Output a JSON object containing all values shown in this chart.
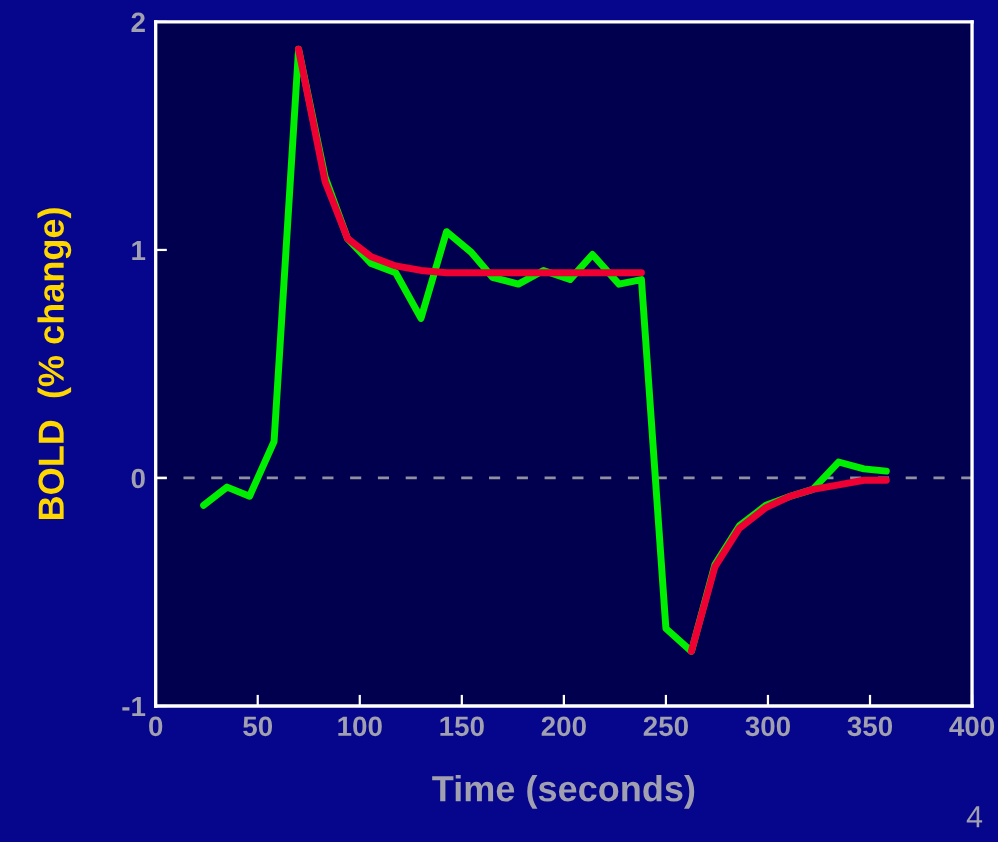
{
  "chart_data": {
    "type": "line",
    "xlabel": "Time (seconds)",
    "ylabel": "BOLD  (% change)",
    "x": [
      23.5,
      35,
      46,
      58,
      70,
      83,
      94,
      105.6,
      117.6,
      130,
      142.5,
      154.6,
      165,
      177.7,
      190,
      203,
      214,
      227,
      238,
      250,
      262.5,
      274,
      286,
      299,
      311,
      322,
      334.6,
      347,
      358
    ],
    "series": [
      {
        "color": "#00ee00",
        "values": [
          -0.12,
          -0.04,
          -0.08,
          0.16,
          1.88,
          1.32,
          1.05,
          0.94,
          0.9,
          0.7,
          1.08,
          0.99,
          0.88,
          0.85,
          0.91,
          0.87,
          0.98,
          0.85,
          0.87,
          -0.66,
          -0.76,
          -0.38,
          -0.21,
          -0.12,
          -0.08,
          -0.05,
          0.07,
          0.04,
          0.03
        ]
      },
      {
        "color": "#ee0033",
        "values": [
          null,
          null,
          null,
          null,
          1.88,
          1.3,
          1.05,
          0.97,
          0.93,
          0.91,
          0.9,
          0.9,
          0.9,
          0.9,
          0.9,
          0.9,
          0.9,
          0.9,
          0.9,
          null,
          -0.76,
          -0.39,
          -0.22,
          -0.13,
          -0.08,
          -0.05,
          -0.03,
          -0.01,
          -0.01
        ]
      }
    ],
    "xlim": [
      0,
      400
    ],
    "xticks": [
      0,
      50,
      100,
      150,
      200,
      250,
      300,
      350,
      400
    ],
    "ylim": [
      -1,
      2
    ],
    "yticks": [
      -1,
      0,
      1,
      2
    ],
    "ref_lines": [
      {
        "axis": "y",
        "value": 0,
        "color": "#9090a0",
        "line_style": "dashed"
      }
    ],
    "annotations": [
      "4"
    ],
    "grid": false,
    "legend": false
  }
}
